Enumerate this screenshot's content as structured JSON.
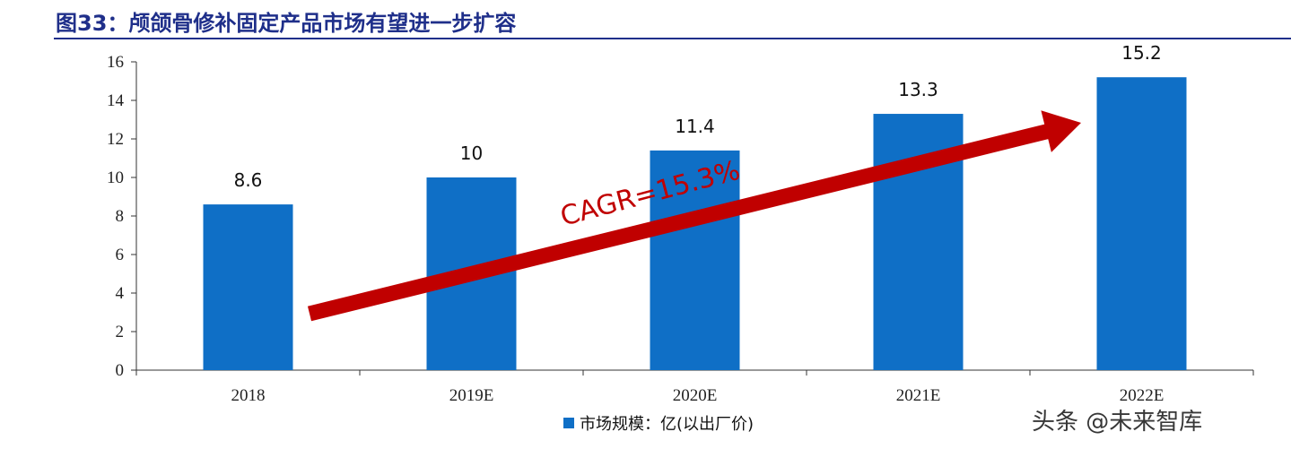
{
  "title": "图33：颅颌骨修补固定产品市场有望进一步扩容",
  "annotation": "CAGR=15.3%",
  "legend_label": "市场规模：亿(以出厂价)",
  "watermark": "头条 @未来智库",
  "colors": {
    "bar": "#0f6fc6",
    "arrow": "#c00000",
    "title": "#1f2f8a"
  },
  "chart_data": {
    "type": "bar",
    "categories": [
      "2018",
      "2019E",
      "2020E",
      "2021E",
      "2022E"
    ],
    "series": [
      {
        "name": "市场规模：亿(以出厂价)",
        "values": [
          8.6,
          10,
          11.4,
          13.3,
          15.2
        ],
        "labels": [
          "8.6",
          "10",
          "11.4",
          "13.3",
          "15.2"
        ]
      }
    ],
    "ylim": [
      0,
      16
    ],
    "yticks": [
      "0",
      "2",
      "4",
      "6",
      "8",
      "10",
      "12",
      "14",
      "16"
    ],
    "legend_position": "bottom",
    "grid": false
  }
}
